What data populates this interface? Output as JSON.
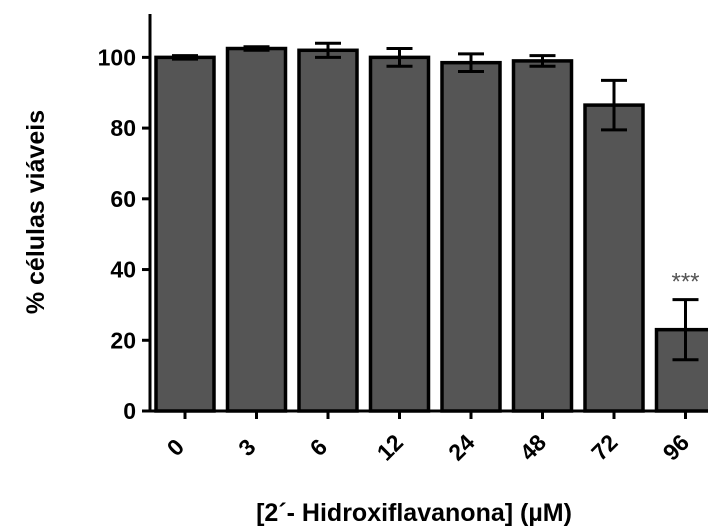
{
  "chart_data": {
    "type": "bar",
    "categories": [
      "0",
      "3",
      "6",
      "12",
      "24",
      "48",
      "72",
      "96"
    ],
    "values": [
      100,
      102.5,
      102,
      100,
      98.5,
      99,
      86.5,
      23
    ],
    "errors": [
      0.5,
      0.5,
      2,
      2.5,
      2.5,
      1.5,
      7,
      8.5
    ],
    "xlabel": "[2´- Hidroxiflavanona] (µM)",
    "ylabel": "% células viáveis",
    "ylim": [
      0,
      110
    ],
    "yticks": [
      "0",
      "20",
      "40",
      "60",
      "80",
      "100"
    ],
    "annotations": [
      {
        "category": "96",
        "text": "***"
      }
    ],
    "colors": {
      "bar": "#555555",
      "annotation": "#555555"
    },
    "grid": false
  }
}
